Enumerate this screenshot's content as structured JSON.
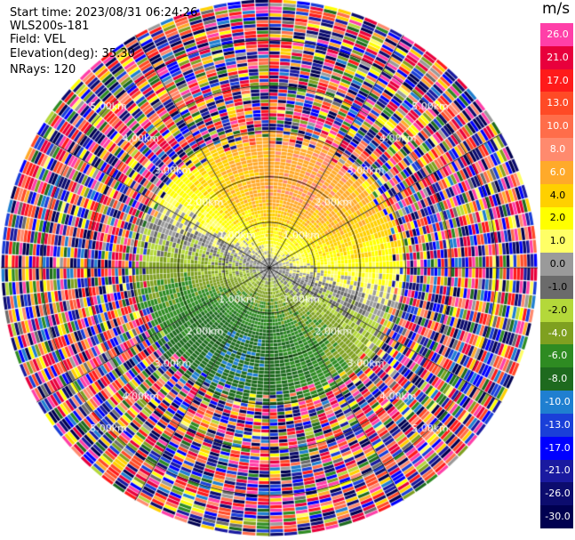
{
  "info": {
    "start_time": "Start time: 2023/08/31 06:24:26",
    "instrument": "WLS200s-181",
    "field": "Field: VEL",
    "elevation": "Elevation(deg): 35.30",
    "nrays": "NRays: 120"
  },
  "colorbar": {
    "unit": "m/s",
    "labels": [
      "26.0",
      "21.0",
      "17.0",
      "13.0",
      "10.0",
      "8.0",
      "6.0",
      "4.0",
      "2.0",
      "1.0",
      "0.0",
      "-1.0",
      "-2.0",
      "-4.0",
      "-6.0",
      "-8.0",
      "-10.0",
      "-13.0",
      "-17.0",
      "-21.0",
      "-26.0",
      "-30.0"
    ],
    "colors": [
      "#ff3fa8",
      "#e8003c",
      "#ff1a1a",
      "#ff4a26",
      "#ff6d4a",
      "#ff8a6e",
      "#ffaa2a",
      "#ffd000",
      "#ffff00",
      "#ffff66",
      "#9a9a9a",
      "#6b6b6b",
      "#b4d83a",
      "#7fa020",
      "#2e8b22",
      "#1e6a1e",
      "#1f7fd0",
      "#1a3fd8",
      "#0000ff",
      "#1a1aa0",
      "#0c0c6e",
      "#000050"
    ]
  },
  "chart_data": {
    "type": "heatmap",
    "subtype": "PPI polar radial-velocity scan",
    "field": "VEL",
    "units": "m/s",
    "elevation_deg": 35.3,
    "nrays": 120,
    "color_levels": [
      -30.0,
      -26.0,
      -21.0,
      -17.0,
      -13.0,
      -10.0,
      -8.0,
      -6.0,
      -4.0,
      -2.0,
      -1.0,
      0.0,
      1.0,
      2.0,
      4.0,
      6.0,
      8.0,
      10.0,
      13.0,
      17.0,
      21.0,
      26.0
    ],
    "range_rings_km": [
      1.0,
      2.0,
      3.0,
      4.0,
      5.0
    ],
    "ring_labels": [
      "1.00km",
      "2.00km",
      "3.00km",
      "4.00km",
      "5.00km"
    ],
    "pattern": {
      "inner_north_sector": "positive velocities 2 to 8 m/s (yellow/orange)",
      "inner_south_sector": "negative velocities -2 to -8 m/s (green/blue)",
      "transition_axis": "near-zero grey band oriented WNW-ESE",
      "outer_gates": "noise beyond ~3 km"
    }
  }
}
